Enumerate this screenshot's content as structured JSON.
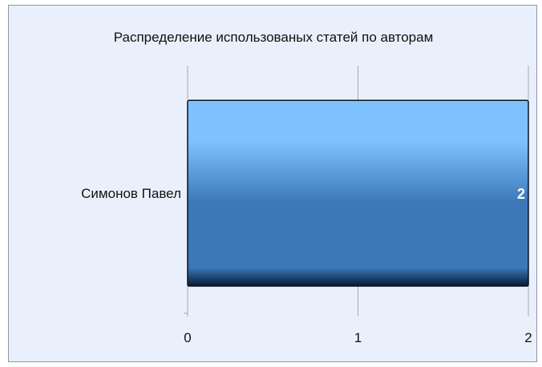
{
  "chart_data": {
    "type": "bar",
    "orientation": "horizontal",
    "title": "Распределение использованых статей по авторам",
    "categories": [
      "Симонов Павел"
    ],
    "values": [
      2
    ],
    "data_labels": [
      "2"
    ],
    "xlim": [
      0,
      2
    ],
    "x_ticks": [
      "0",
      "1",
      "2"
    ],
    "grid": true,
    "colors": {
      "bar_top": "#7fc1ff",
      "bar_mid": "#3c78b8",
      "bar_bottom": "#061a33",
      "plot_background": "#eaf0fb",
      "gridline": "#a4a8b0"
    }
  }
}
